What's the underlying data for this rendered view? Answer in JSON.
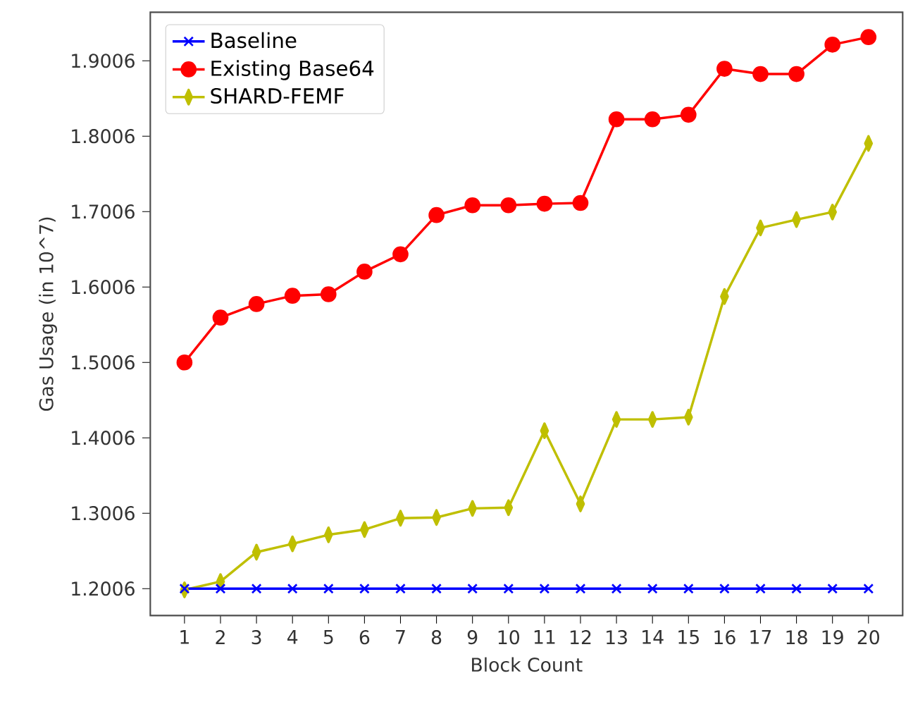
{
  "chart_data": {
    "type": "line",
    "xlabel": "Block Count",
    "ylabel": "Gas Usage (in 10^7)",
    "x": [
      1,
      2,
      3,
      4,
      5,
      6,
      7,
      8,
      9,
      10,
      11,
      12,
      13,
      14,
      15,
      16,
      17,
      18,
      19,
      20
    ],
    "xlim": [
      0.05,
      20.95
    ],
    "xticks": [
      1,
      2,
      3,
      4,
      5,
      6,
      7,
      8,
      9,
      10,
      11,
      12,
      13,
      14,
      15,
      16,
      17,
      18,
      19,
      20
    ],
    "ylim": [
      1.165,
      1.965
    ],
    "yticks": [
      1.2006,
      1.3006,
      1.4006,
      1.5006,
      1.6006,
      1.7006,
      1.8006,
      1.9006
    ],
    "legend": "top left",
    "grid": false,
    "line_style": "solid",
    "series": [
      {
        "name": "Baseline",
        "color": "#0000ff",
        "marker": "cross",
        "values": [
          1.2006,
          1.2006,
          1.2006,
          1.2006,
          1.2006,
          1.2006,
          1.2006,
          1.2006,
          1.2006,
          1.2006,
          1.2006,
          1.2006,
          1.2006,
          1.2006,
          1.2006,
          1.2006,
          1.2006,
          1.2006,
          1.2006,
          1.2006
        ]
      },
      {
        "name": "Existing Base64",
        "color": "#ff0000",
        "marker": "circle",
        "values": [
          1.5006,
          1.56,
          1.578,
          1.589,
          1.591,
          1.621,
          1.644,
          1.696,
          1.709,
          1.709,
          1.711,
          1.712,
          1.823,
          1.823,
          1.829,
          1.89,
          1.883,
          1.883,
          1.922,
          1.932
        ]
      },
      {
        "name": "SHARD-FEMF",
        "color": "#bfbf00",
        "marker": "diamond",
        "values": [
          1.199,
          1.21,
          1.249,
          1.26,
          1.272,
          1.279,
          1.294,
          1.295,
          1.307,
          1.308,
          1.41,
          1.313,
          1.425,
          1.425,
          1.428,
          1.588,
          1.679,
          1.69,
          1.7,
          1.791
        ]
      }
    ]
  }
}
